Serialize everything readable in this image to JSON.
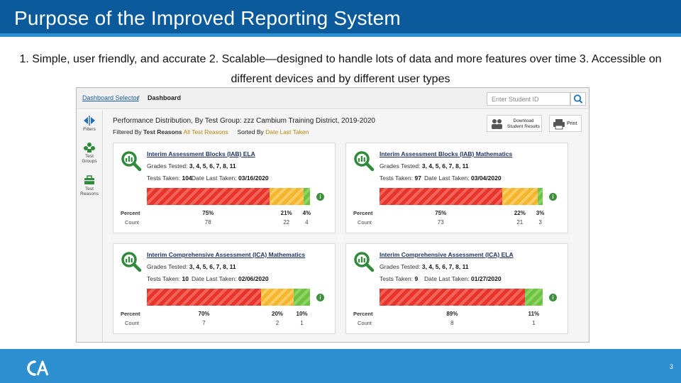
{
  "slide": {
    "title": "Purpose of the Improved Reporting System",
    "subtitle": "1. Simple, user friendly, and accurate  2. Scalable—designed to handle lots of data and more features over time  3. Accessible on different devices and by different user types",
    "page_number": "3"
  },
  "app": {
    "breadcrumb": {
      "link": "Dashboard Selector",
      "separator": "/",
      "current": "Dashboard"
    },
    "search": {
      "placeholder": "Enter Student ID",
      "icon": "search-icon"
    },
    "rail": [
      {
        "label": "Filters",
        "icon": "filter-arrows-icon"
      },
      {
        "label_line1": "Test",
        "label_line2": "Groups",
        "icon": "group-icon"
      },
      {
        "label_line1": "Test",
        "label_line2": "Reasons",
        "icon": "toolbox-icon"
      }
    ],
    "performance_title": "Performance Distribution, By Test Group: zzz Cambium Training District, 2019-2020",
    "filter": {
      "filtered_by_label": "Filtered By",
      "filter_key": "Test Reasons",
      "filter_value": "All Test Reasons",
      "sorted_by_label": "Sorted By",
      "sort_value": "Date Last Taken"
    },
    "download_button": {
      "line1": "Download",
      "line2": "Student Results"
    },
    "print_button": "Print",
    "labels": {
      "percent": "Percent",
      "count": "Count",
      "grades_tested": "Grades Tested:",
      "tests_taken": "Tests Taken:",
      "date_last_taken": "Date Last Taken:"
    },
    "colors": {
      "below": "#e8342b",
      "near": "#f5b52c",
      "above": "#6ec23f"
    },
    "cards": [
      {
        "title": "Interim Assessment Blocks (IAB) ELA",
        "grades": "3, 4, 5, 6, 7, 8, 11",
        "tests_taken": "104",
        "date_last_taken": "03/16/2020",
        "segments": [
          {
            "level": "below",
            "percent": 75,
            "percent_label": "75%",
            "count": "78"
          },
          {
            "level": "near",
            "percent": 21,
            "percent_label": "21%",
            "count": "22"
          },
          {
            "level": "above",
            "percent": 4,
            "percent_label": "4%",
            "count": "4"
          }
        ]
      },
      {
        "title": "Interim Assessment Blocks (IAB) Mathematics",
        "grades": "3, 4, 5, 6, 7, 8, 11",
        "tests_taken": "97",
        "date_last_taken": "03/04/2020",
        "segments": [
          {
            "level": "below",
            "percent": 75,
            "percent_label": "75%",
            "count": "73"
          },
          {
            "level": "near",
            "percent": 22,
            "percent_label": "22%",
            "count": "21"
          },
          {
            "level": "above",
            "percent": 3,
            "percent_label": "3%",
            "count": "3"
          }
        ]
      },
      {
        "title": "Interim Comprehensive Assessment (ICA) Mathematics",
        "grades": "3, 4, 5, 6, 7, 8, 11",
        "tests_taken": "10",
        "date_last_taken": "02/06/2020",
        "segments": [
          {
            "level": "below",
            "percent": 70,
            "percent_label": "70%",
            "count": "7"
          },
          {
            "level": "near",
            "percent": 20,
            "percent_label": "20%",
            "count": "2"
          },
          {
            "level": "above",
            "percent": 10,
            "percent_label": "10%",
            "count": "1"
          }
        ]
      },
      {
        "title": "Interim Comprehensive Assessment (ICA) ELA",
        "grades": "3, 4, 5, 6, 7, 8, 11",
        "tests_taken": "9",
        "date_last_taken": "01/27/2020",
        "segments": [
          {
            "level": "below",
            "percent": 89,
            "percent_label": "89%",
            "count": "8"
          },
          {
            "level": "above",
            "percent": 11,
            "percent_label": "11%",
            "count": "1"
          }
        ]
      }
    ]
  }
}
